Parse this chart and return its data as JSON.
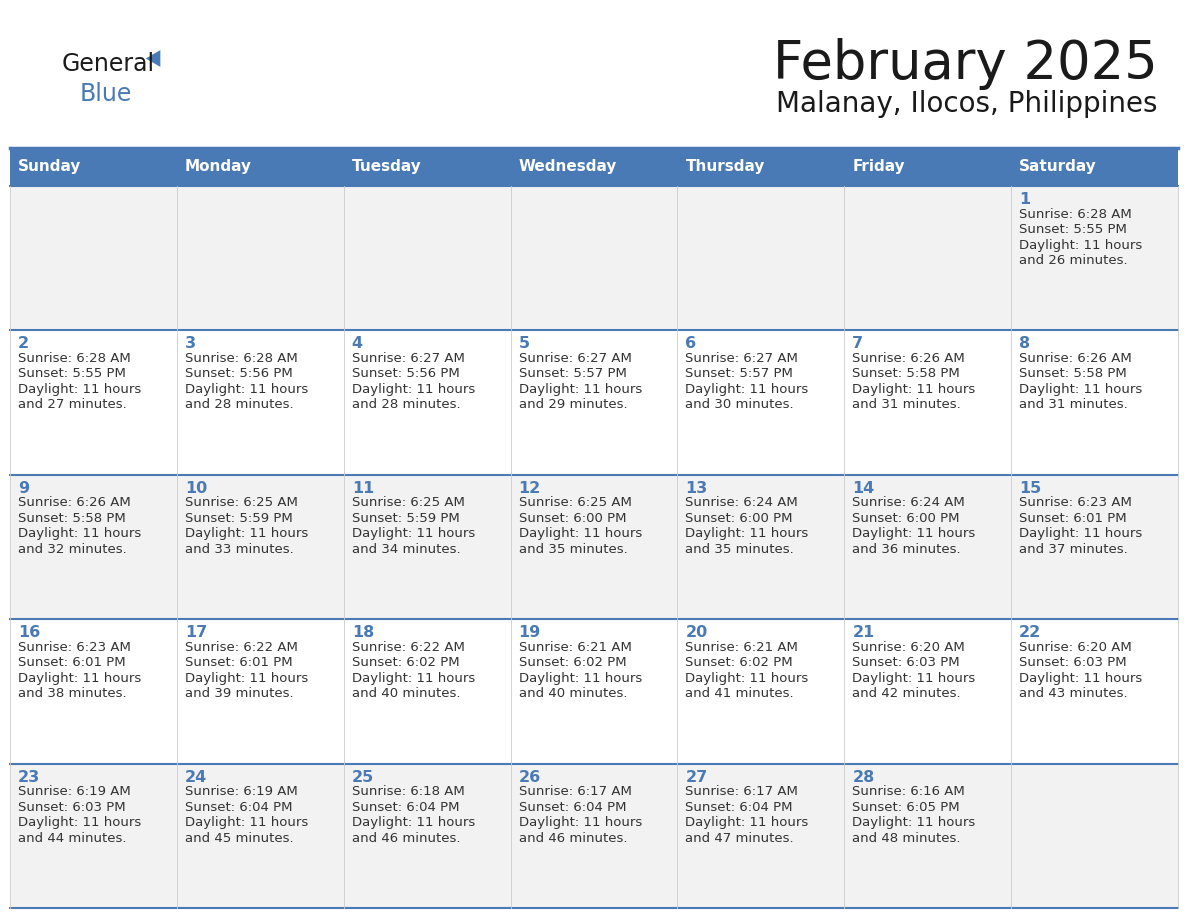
{
  "title": "February 2025",
  "subtitle": "Malanay, Ilocos, Philippines",
  "days_of_week": [
    "Sunday",
    "Monday",
    "Tuesday",
    "Wednesday",
    "Thursday",
    "Friday",
    "Saturday"
  ],
  "header_bg": "#4a7ab5",
  "header_text": "#FFFFFF",
  "row_bg": [
    "#f2f2f2",
    "#ffffff",
    "#f2f2f2",
    "#ffffff",
    "#f2f2f2"
  ],
  "day_number_color": "#4a7ab5",
  "text_color": "#333333",
  "border_color": "#4a7ab5",
  "title_color": "#1a1a1a",
  "subtitle_color": "#1a1a1a",
  "logo_general_color": "#1a1a1a",
  "logo_blue_color": "#4a7ab5",
  "calendar_data": [
    {
      "day": 1,
      "col": 6,
      "row": 0,
      "sunrise": "6:28 AM",
      "sunset": "5:55 PM",
      "daylight": "11 hours and 26 minutes."
    },
    {
      "day": 2,
      "col": 0,
      "row": 1,
      "sunrise": "6:28 AM",
      "sunset": "5:55 PM",
      "daylight": "11 hours and 27 minutes."
    },
    {
      "day": 3,
      "col": 1,
      "row": 1,
      "sunrise": "6:28 AM",
      "sunset": "5:56 PM",
      "daylight": "11 hours and 28 minutes."
    },
    {
      "day": 4,
      "col": 2,
      "row": 1,
      "sunrise": "6:27 AM",
      "sunset": "5:56 PM",
      "daylight": "11 hours and 28 minutes."
    },
    {
      "day": 5,
      "col": 3,
      "row": 1,
      "sunrise": "6:27 AM",
      "sunset": "5:57 PM",
      "daylight": "11 hours and 29 minutes."
    },
    {
      "day": 6,
      "col": 4,
      "row": 1,
      "sunrise": "6:27 AM",
      "sunset": "5:57 PM",
      "daylight": "11 hours and 30 minutes."
    },
    {
      "day": 7,
      "col": 5,
      "row": 1,
      "sunrise": "6:26 AM",
      "sunset": "5:58 PM",
      "daylight": "11 hours and 31 minutes."
    },
    {
      "day": 8,
      "col": 6,
      "row": 1,
      "sunrise": "6:26 AM",
      "sunset": "5:58 PM",
      "daylight": "11 hours and 31 minutes."
    },
    {
      "day": 9,
      "col": 0,
      "row": 2,
      "sunrise": "6:26 AM",
      "sunset": "5:58 PM",
      "daylight": "11 hours and 32 minutes."
    },
    {
      "day": 10,
      "col": 1,
      "row": 2,
      "sunrise": "6:25 AM",
      "sunset": "5:59 PM",
      "daylight": "11 hours and 33 minutes."
    },
    {
      "day": 11,
      "col": 2,
      "row": 2,
      "sunrise": "6:25 AM",
      "sunset": "5:59 PM",
      "daylight": "11 hours and 34 minutes."
    },
    {
      "day": 12,
      "col": 3,
      "row": 2,
      "sunrise": "6:25 AM",
      "sunset": "6:00 PM",
      "daylight": "11 hours and 35 minutes."
    },
    {
      "day": 13,
      "col": 4,
      "row": 2,
      "sunrise": "6:24 AM",
      "sunset": "6:00 PM",
      "daylight": "11 hours and 35 minutes."
    },
    {
      "day": 14,
      "col": 5,
      "row": 2,
      "sunrise": "6:24 AM",
      "sunset": "6:00 PM",
      "daylight": "11 hours and 36 minutes."
    },
    {
      "day": 15,
      "col": 6,
      "row": 2,
      "sunrise": "6:23 AM",
      "sunset": "6:01 PM",
      "daylight": "11 hours and 37 minutes."
    },
    {
      "day": 16,
      "col": 0,
      "row": 3,
      "sunrise": "6:23 AM",
      "sunset": "6:01 PM",
      "daylight": "11 hours and 38 minutes."
    },
    {
      "day": 17,
      "col": 1,
      "row": 3,
      "sunrise": "6:22 AM",
      "sunset": "6:01 PM",
      "daylight": "11 hours and 39 minutes."
    },
    {
      "day": 18,
      "col": 2,
      "row": 3,
      "sunrise": "6:22 AM",
      "sunset": "6:02 PM",
      "daylight": "11 hours and 40 minutes."
    },
    {
      "day": 19,
      "col": 3,
      "row": 3,
      "sunrise": "6:21 AM",
      "sunset": "6:02 PM",
      "daylight": "11 hours and 40 minutes."
    },
    {
      "day": 20,
      "col": 4,
      "row": 3,
      "sunrise": "6:21 AM",
      "sunset": "6:02 PM",
      "daylight": "11 hours and 41 minutes."
    },
    {
      "day": 21,
      "col": 5,
      "row": 3,
      "sunrise": "6:20 AM",
      "sunset": "6:03 PM",
      "daylight": "11 hours and 42 minutes."
    },
    {
      "day": 22,
      "col": 6,
      "row": 3,
      "sunrise": "6:20 AM",
      "sunset": "6:03 PM",
      "daylight": "11 hours and 43 minutes."
    },
    {
      "day": 23,
      "col": 0,
      "row": 4,
      "sunrise": "6:19 AM",
      "sunset": "6:03 PM",
      "daylight": "11 hours and 44 minutes."
    },
    {
      "day": 24,
      "col": 1,
      "row": 4,
      "sunrise": "6:19 AM",
      "sunset": "6:04 PM",
      "daylight": "11 hours and 45 minutes."
    },
    {
      "day": 25,
      "col": 2,
      "row": 4,
      "sunrise": "6:18 AM",
      "sunset": "6:04 PM",
      "daylight": "11 hours and 46 minutes."
    },
    {
      "day": 26,
      "col": 3,
      "row": 4,
      "sunrise": "6:17 AM",
      "sunset": "6:04 PM",
      "daylight": "11 hours and 46 minutes."
    },
    {
      "day": 27,
      "col": 4,
      "row": 4,
      "sunrise": "6:17 AM",
      "sunset": "6:04 PM",
      "daylight": "11 hours and 47 minutes."
    },
    {
      "day": 28,
      "col": 5,
      "row": 4,
      "sunrise": "6:16 AM",
      "sunset": "6:05 PM",
      "daylight": "11 hours and 48 minutes."
    }
  ]
}
